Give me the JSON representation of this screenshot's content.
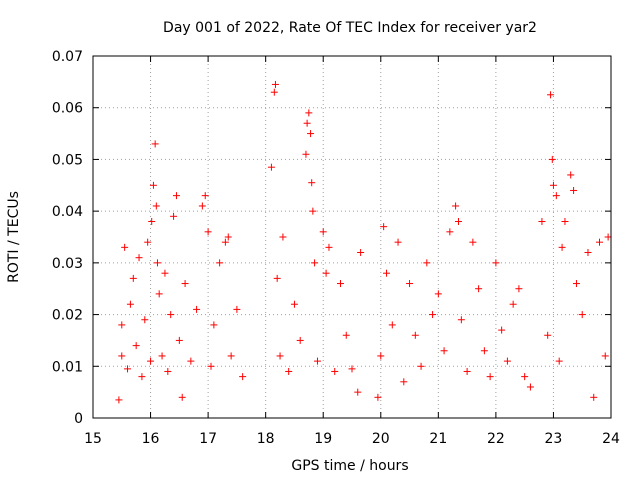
{
  "chart_data": {
    "type": "scatter",
    "title": "Day 001 of 2022, Rate Of TEC Index for receiver yar2",
    "xlabel": "GPS time / hours",
    "ylabel": "ROTI / TECUs",
    "xlim": [
      15,
      24
    ],
    "ylim": [
      0,
      0.07
    ],
    "x_ticks": [
      "15",
      "16",
      "17",
      "18",
      "19",
      "20",
      "21",
      "22",
      "23",
      "24"
    ],
    "y_ticks": [
      "0",
      "0.01",
      "0.02",
      "0.03",
      "0.04",
      "0.05",
      "0.06",
      "0.07"
    ],
    "grid": true,
    "marker": "+",
    "color": "#ff0000",
    "series": [
      {
        "name": "ROTI",
        "points": [
          [
            15.45,
            0.0035
          ],
          [
            15.5,
            0.012
          ],
          [
            15.5,
            0.018
          ],
          [
            15.55,
            0.033
          ],
          [
            15.6,
            0.0095
          ],
          [
            15.65,
            0.022
          ],
          [
            15.7,
            0.027
          ],
          [
            15.75,
            0.014
          ],
          [
            15.8,
            0.031
          ],
          [
            15.85,
            0.008
          ],
          [
            15.9,
            0.019
          ],
          [
            15.95,
            0.034
          ],
          [
            16.0,
            0.011
          ],
          [
            16.02,
            0.038
          ],
          [
            16.05,
            0.045
          ],
          [
            16.08,
            0.053
          ],
          [
            16.1,
            0.041
          ],
          [
            16.12,
            0.03
          ],
          [
            16.15,
            0.024
          ],
          [
            16.2,
            0.012
          ],
          [
            16.25,
            0.028
          ],
          [
            16.3,
            0.009
          ],
          [
            16.35,
            0.02
          ],
          [
            16.4,
            0.039
          ],
          [
            16.45,
            0.043
          ],
          [
            16.5,
            0.015
          ],
          [
            16.55,
            0.004
          ],
          [
            16.6,
            0.026
          ],
          [
            16.7,
            0.011
          ],
          [
            16.8,
            0.021
          ],
          [
            16.9,
            0.041
          ],
          [
            16.95,
            0.043
          ],
          [
            17.0,
            0.036
          ],
          [
            17.05,
            0.01
          ],
          [
            17.1,
            0.018
          ],
          [
            17.2,
            0.03
          ],
          [
            17.3,
            0.034
          ],
          [
            17.35,
            0.035
          ],
          [
            17.4,
            0.012
          ],
          [
            17.5,
            0.021
          ],
          [
            17.6,
            0.008
          ],
          [
            18.1,
            0.0485
          ],
          [
            18.15,
            0.063
          ],
          [
            18.17,
            0.0645
          ],
          [
            18.2,
            0.027
          ],
          [
            18.25,
            0.012
          ],
          [
            18.3,
            0.035
          ],
          [
            18.4,
            0.009
          ],
          [
            18.5,
            0.022
          ],
          [
            18.6,
            0.015
          ],
          [
            18.7,
            0.051
          ],
          [
            18.72,
            0.057
          ],
          [
            18.75,
            0.059
          ],
          [
            18.78,
            0.055
          ],
          [
            18.8,
            0.0455
          ],
          [
            18.82,
            0.04
          ],
          [
            18.85,
            0.03
          ],
          [
            18.9,
            0.011
          ],
          [
            19.0,
            0.036
          ],
          [
            19.05,
            0.028
          ],
          [
            19.1,
            0.033
          ],
          [
            19.2,
            0.009
          ],
          [
            19.3,
            0.026
          ],
          [
            19.4,
            0.016
          ],
          [
            19.5,
            0.0095
          ],
          [
            19.6,
            0.005
          ],
          [
            19.65,
            0.032
          ],
          [
            19.95,
            0.004
          ],
          [
            20.0,
            0.012
          ],
          [
            20.05,
            0.037
          ],
          [
            20.1,
            0.028
          ],
          [
            20.2,
            0.018
          ],
          [
            20.3,
            0.034
          ],
          [
            20.4,
            0.007
          ],
          [
            20.5,
            0.026
          ],
          [
            20.6,
            0.016
          ],
          [
            20.7,
            0.01
          ],
          [
            20.8,
            0.03
          ],
          [
            20.9,
            0.02
          ],
          [
            21.0,
            0.024
          ],
          [
            21.1,
            0.013
          ],
          [
            21.2,
            0.036
          ],
          [
            21.3,
            0.041
          ],
          [
            21.35,
            0.038
          ],
          [
            21.4,
            0.019
          ],
          [
            21.5,
            0.009
          ],
          [
            21.6,
            0.034
          ],
          [
            21.7,
            0.025
          ],
          [
            21.8,
            0.013
          ],
          [
            21.9,
            0.008
          ],
          [
            22.0,
            0.03
          ],
          [
            22.1,
            0.017
          ],
          [
            22.2,
            0.011
          ],
          [
            22.3,
            0.022
          ],
          [
            22.4,
            0.025
          ],
          [
            22.5,
            0.008
          ],
          [
            22.6,
            0.006
          ],
          [
            22.8,
            0.038
          ],
          [
            22.9,
            0.016
          ],
          [
            22.95,
            0.0625
          ],
          [
            22.98,
            0.05
          ],
          [
            23.0,
            0.045
          ],
          [
            23.05,
            0.043
          ],
          [
            23.1,
            0.011
          ],
          [
            23.15,
            0.033
          ],
          [
            23.2,
            0.038
          ],
          [
            23.3,
            0.047
          ],
          [
            23.35,
            0.044
          ],
          [
            23.4,
            0.026
          ],
          [
            23.5,
            0.02
          ],
          [
            23.6,
            0.032
          ],
          [
            23.7,
            0.004
          ],
          [
            23.8,
            0.034
          ],
          [
            23.9,
            0.012
          ],
          [
            23.95,
            0.035
          ]
        ]
      }
    ]
  }
}
